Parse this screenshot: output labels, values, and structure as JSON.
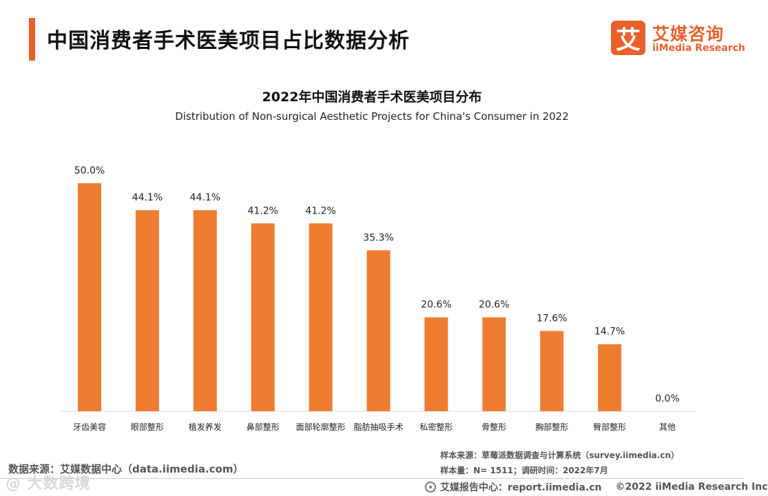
{
  "header": {
    "title": "中国消费者手术医美项目占比数据分析"
  },
  "logo": {
    "glyph": "艾",
    "cn": "艾媒咨询",
    "en": "iiMedia Research",
    "color": "#e8612b"
  },
  "chart_data": {
    "type": "bar",
    "title": "2022年中国消费者手术医美项目分布",
    "subtitle": "Distribution of Non-surgical Aesthetic Projects for China's Consumer in 2022",
    "categories": [
      "牙齿美容",
      "眼部整形",
      "植发养发",
      "鼻部整形",
      "面部轮廓整形",
      "脂肪抽吸手术",
      "私密整形",
      "骨整形",
      "胸部整形",
      "臀部整形",
      "其他"
    ],
    "values": [
      50.0,
      44.1,
      44.1,
      41.2,
      41.2,
      35.3,
      20.6,
      20.6,
      17.6,
      14.7,
      0.0
    ],
    "value_labels": [
      "50.0%",
      "44.1%",
      "44.1%",
      "41.2%",
      "41.2%",
      "35.3%",
      "20.6%",
      "20.6%",
      "17.6%",
      "14.7%",
      "0.0%"
    ],
    "ylim": [
      0,
      50
    ],
    "bar_color": "#ee7d31",
    "grid": false,
    "legend": "none"
  },
  "source": {
    "left": "数据来源：艾媒数据中心（data.iimedia.com）",
    "sample_source": "样本来源：草莓派数据调查与计算系统（survey.iimedia.cn）",
    "sample_size": "样本量：N= 1511；调研时间：2022年7月"
  },
  "footer": {
    "report": "艾媒报告中心：report.iimedia.cn",
    "copyright": "©2022  iiMedia Research  Inc"
  },
  "watermark": {
    "text": "@ 大数跨境"
  }
}
